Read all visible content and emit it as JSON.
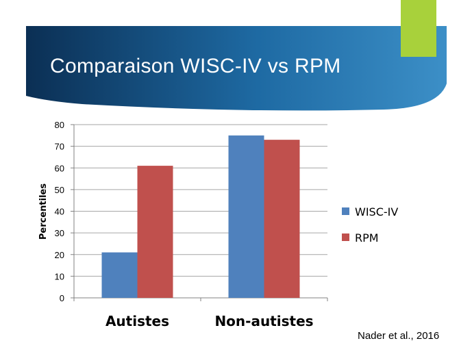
{
  "banner": {
    "title": "Comparaison WISC-IV vs RPM",
    "gradient_colors": [
      "#0b2f54",
      "#1e6aa3",
      "#3c8fc7"
    ],
    "accent_color": "#a8d13b"
  },
  "chart_data": {
    "type": "bar",
    "categories": [
      "Autistes",
      "Non-autistes"
    ],
    "series": [
      {
        "name": "WISC-IV",
        "values": [
          21,
          75
        ],
        "color": "#4f81bd"
      },
      {
        "name": "RPM",
        "values": [
          61,
          73
        ],
        "color": "#c0504d"
      }
    ],
    "title": "",
    "xlabel": "",
    "ylabel": "Percentiles",
    "ylim": [
      0,
      80
    ],
    "yticks": [
      0,
      10,
      20,
      30,
      40,
      50,
      60,
      70,
      80
    ],
    "grid": true,
    "legend_position": "right"
  },
  "source": "Nader et al., 2016"
}
